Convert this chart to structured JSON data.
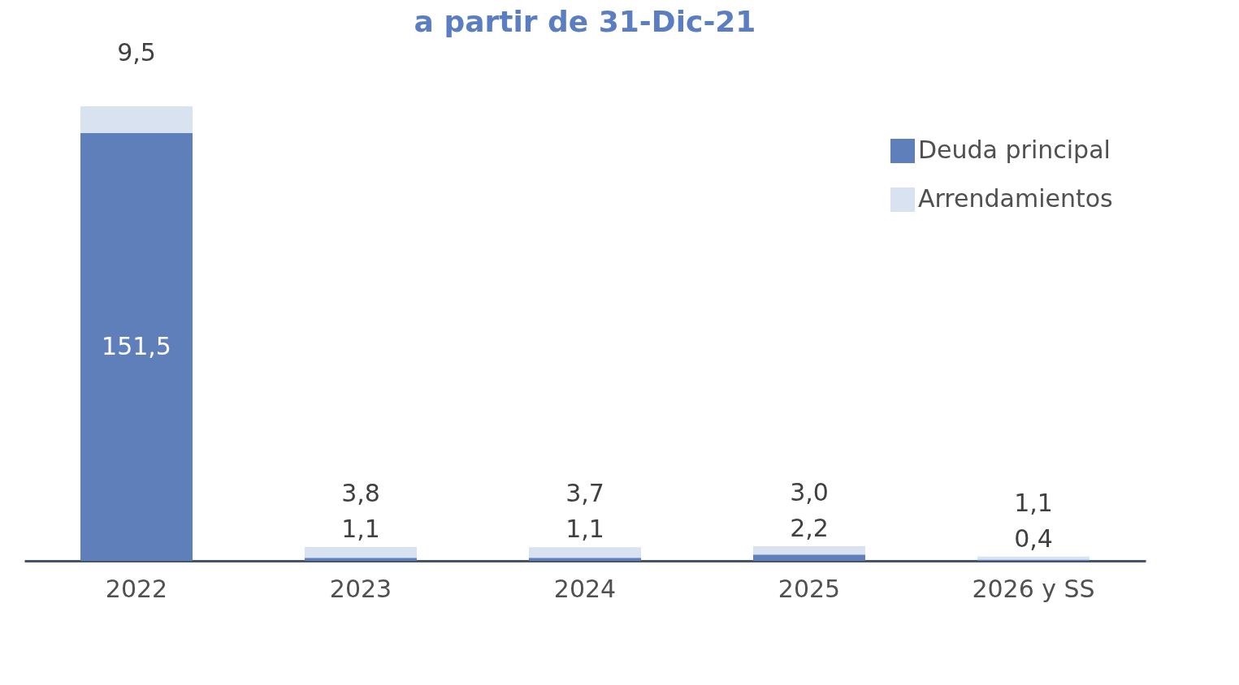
{
  "chart_data": {
    "type": "bar",
    "title": "a partir de 31-Dic-21",
    "stacked": true,
    "categories": [
      "2022",
      "2023",
      "2024",
      "2025",
      "2026 y SS"
    ],
    "series": [
      {
        "name": "Deuda principal",
        "color": "#5f7fba",
        "values": [
          151.5,
          1.1,
          1.1,
          2.2,
          0.4
        ],
        "value_labels": [
          "151,5",
          "1,1",
          "1,1",
          "2,2",
          "0,4"
        ]
      },
      {
        "name": "Arrendamientos",
        "color": "#d9e2f0",
        "values": [
          9.5,
          3.8,
          3.7,
          3.0,
          1.1
        ],
        "value_labels": [
          "9,5",
          "3,8",
          "3,7",
          "3,0",
          "1,1"
        ]
      }
    ],
    "legend": "top right"
  }
}
